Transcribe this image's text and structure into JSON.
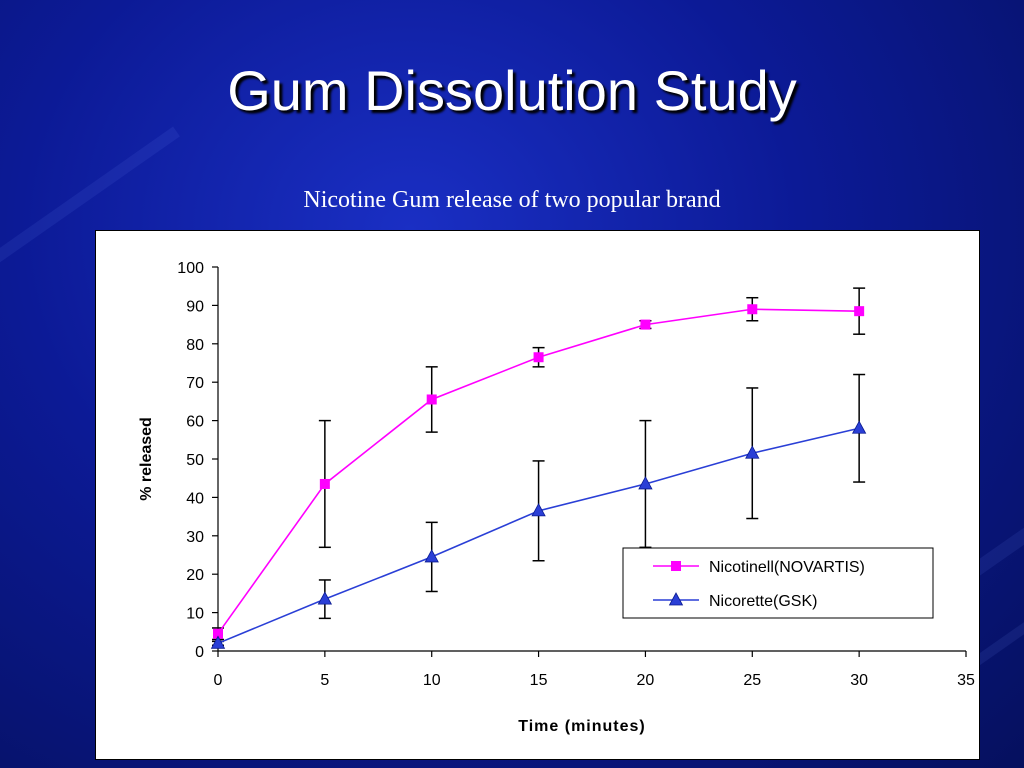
{
  "slide": {
    "title": "Gum Dissolution Study"
  },
  "colors": {
    "background": "#0c1a96",
    "series1": "#ff00ff",
    "series2": "#2a3fd6",
    "errorbar": "#000000"
  },
  "chart_data": {
    "type": "line",
    "title": "Nicotine Gum release of two popular brand",
    "xlabel": "Time (minutes)",
    "ylabel": "% released",
    "xlim": [
      0,
      35
    ],
    "ylim": [
      0,
      100
    ],
    "xticks": [
      0,
      5,
      10,
      15,
      20,
      25,
      30,
      35
    ],
    "yticks": [
      0,
      10,
      20,
      30,
      40,
      50,
      60,
      70,
      80,
      90,
      100
    ],
    "grid": false,
    "legend_position": "bottom-right",
    "x": [
      0,
      5,
      10,
      15,
      20,
      25,
      30
    ],
    "series": [
      {
        "name": "Nicotinell(NOVARTIS)",
        "marker": "square",
        "values": [
          4.5,
          43.5,
          65.5,
          76.5,
          85,
          89,
          88.5
        ],
        "error": [
          1.5,
          16.5,
          8.5,
          2.5,
          1.0,
          3.0,
          6.0
        ]
      },
      {
        "name": "Nicorette(GSK)",
        "marker": "triangle",
        "values": [
          2,
          13.5,
          24.5,
          36.5,
          43.5,
          51.5,
          58
        ],
        "error": [
          0.5,
          5,
          9,
          13,
          16.5,
          17,
          14
        ]
      }
    ]
  }
}
